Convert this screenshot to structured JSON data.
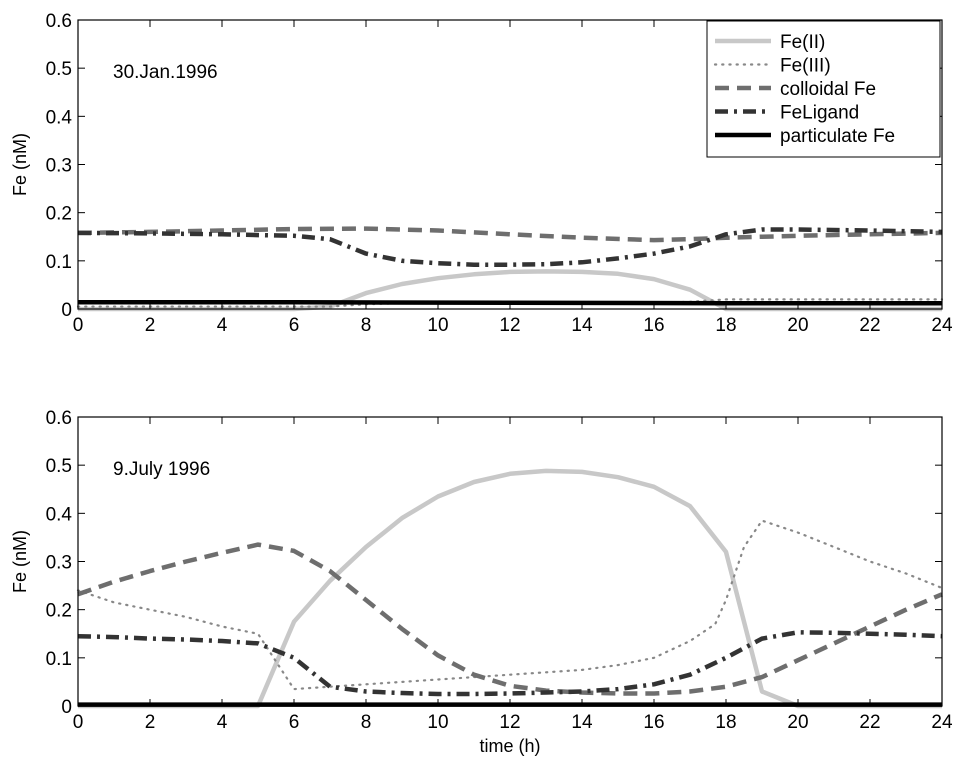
{
  "chart_data": [
    {
      "type": "line",
      "title": "",
      "xlabel": "",
      "ylabel": "Fe (nM)",
      "annotation": "30.Jan.1996",
      "xlim": [
        0,
        24
      ],
      "ylim": [
        0,
        0.6
      ],
      "xticks": [
        "0",
        "2",
        "4",
        "6",
        "8",
        "10",
        "12",
        "14",
        "16",
        "18",
        "20",
        "22",
        "24"
      ],
      "yticks": [
        "0",
        "0.1",
        "0.2",
        "0.3",
        "0.4",
        "0.5",
        "0.6"
      ],
      "grid": false,
      "legend": {
        "position": "top-right",
        "entries": [
          "Fe(II)",
          "Fe(III)",
          "colloidal Fe",
          "FeLigand",
          "particulate Fe"
        ]
      },
      "series": [
        {
          "name": "Fe(II)",
          "color": "#c8c8c8",
          "style": "solid",
          "x": [
            0,
            6,
            7,
            8,
            9,
            10,
            11,
            12,
            13,
            14,
            15,
            16,
            17,
            17.7,
            18,
            24
          ],
          "y": [
            0,
            0,
            0.005,
            0.033,
            0.052,
            0.064,
            0.072,
            0.077,
            0.078,
            0.077,
            0.073,
            0.062,
            0.04,
            0.012,
            0,
            0
          ]
        },
        {
          "name": "Fe(III)",
          "color": "#888888",
          "style": "dotted",
          "x": [
            0,
            5,
            6,
            7,
            8,
            9,
            12,
            15,
            17,
            18,
            24
          ],
          "y": [
            0.005,
            0.005,
            0.005,
            0.005,
            0.01,
            0.012,
            0.012,
            0.012,
            0.015,
            0.02,
            0.02
          ]
        },
        {
          "name": "colloidal Fe",
          "color": "#6e6e6e",
          "style": "dashed",
          "x": [
            0,
            2,
            4,
            6,
            8,
            10,
            12,
            14,
            16,
            17,
            18,
            20,
            22,
            24
          ],
          "y": [
            0.158,
            0.16,
            0.163,
            0.166,
            0.167,
            0.163,
            0.155,
            0.148,
            0.143,
            0.145,
            0.148,
            0.152,
            0.155,
            0.158
          ]
        },
        {
          "name": "FeLigand",
          "color": "#333333",
          "style": "dashdot",
          "x": [
            0,
            2,
            4,
            6,
            7,
            8,
            9,
            10,
            11,
            12,
            13,
            14,
            15,
            16,
            17,
            18,
            19,
            20,
            22,
            24
          ],
          "y": [
            0.158,
            0.157,
            0.155,
            0.152,
            0.145,
            0.115,
            0.1,
            0.095,
            0.092,
            0.092,
            0.093,
            0.097,
            0.105,
            0.115,
            0.13,
            0.155,
            0.165,
            0.165,
            0.163,
            0.16
          ]
        },
        {
          "name": "particulate Fe",
          "color": "#000000",
          "style": "solid",
          "x": [
            0,
            6,
            12,
            18,
            24
          ],
          "y": [
            0.014,
            0.014,
            0.013,
            0.012,
            0.012
          ]
        }
      ]
    },
    {
      "type": "line",
      "title": "",
      "xlabel": "time (h)",
      "ylabel": "Fe (nM)",
      "annotation": "9.July 1996",
      "xlim": [
        0,
        24
      ],
      "ylim": [
        0,
        0.6
      ],
      "xticks": [
        "0",
        "2",
        "4",
        "6",
        "8",
        "10",
        "12",
        "14",
        "16",
        "18",
        "20",
        "22",
        "24"
      ],
      "yticks": [
        "0",
        "0.1",
        "0.2",
        "0.3",
        "0.4",
        "0.5",
        "0.6"
      ],
      "grid": false,
      "series": [
        {
          "name": "Fe(II)",
          "color": "#c8c8c8",
          "style": "solid",
          "x": [
            0,
            5,
            6,
            7,
            8,
            9,
            10,
            11,
            12,
            13,
            14,
            15,
            16,
            17,
            18,
            19,
            20,
            24
          ],
          "y": [
            0,
            0,
            0.175,
            0.26,
            0.33,
            0.39,
            0.435,
            0.465,
            0.482,
            0.488,
            0.486,
            0.475,
            0.455,
            0.415,
            0.32,
            0.03,
            0,
            0
          ]
        },
        {
          "name": "Fe(III)",
          "color": "#888888",
          "style": "dotted",
          "x": [
            0,
            1,
            2,
            3,
            4,
            5,
            6,
            7,
            8,
            9,
            10,
            11,
            12,
            13,
            14,
            15,
            16,
            17,
            17.7,
            18,
            18.5,
            19,
            20,
            21,
            22,
            23,
            24
          ],
          "y": [
            0.24,
            0.215,
            0.2,
            0.185,
            0.165,
            0.15,
            0.035,
            0.04,
            0.045,
            0.05,
            0.055,
            0.06,
            0.065,
            0.07,
            0.075,
            0.085,
            0.1,
            0.135,
            0.17,
            0.22,
            0.33,
            0.385,
            0.36,
            0.33,
            0.3,
            0.275,
            0.245
          ]
        },
        {
          "name": "colloidal Fe",
          "color": "#6e6e6e",
          "style": "dashed",
          "x": [
            0,
            1,
            2,
            3,
            4,
            5,
            6,
            7,
            8,
            9,
            10,
            11,
            12,
            13,
            14,
            15,
            16,
            17,
            18,
            19,
            20,
            21,
            22,
            23,
            24
          ],
          "y": [
            0.232,
            0.258,
            0.28,
            0.3,
            0.318,
            0.335,
            0.322,
            0.28,
            0.22,
            0.16,
            0.105,
            0.065,
            0.042,
            0.032,
            0.028,
            0.026,
            0.026,
            0.03,
            0.04,
            0.06,
            0.095,
            0.13,
            0.165,
            0.2,
            0.232
          ]
        },
        {
          "name": "FeLigand",
          "color": "#333333",
          "style": "dashdot",
          "x": [
            0,
            1,
            2,
            3,
            4,
            5,
            6,
            7,
            8,
            9,
            10,
            11,
            12,
            13,
            14,
            15,
            16,
            17,
            18,
            19,
            20,
            21,
            22,
            23,
            24
          ],
          "y": [
            0.145,
            0.143,
            0.14,
            0.138,
            0.135,
            0.13,
            0.1,
            0.04,
            0.03,
            0.027,
            0.025,
            0.025,
            0.026,
            0.028,
            0.03,
            0.035,
            0.045,
            0.065,
            0.1,
            0.14,
            0.153,
            0.152,
            0.15,
            0.148,
            0.145
          ]
        },
        {
          "name": "particulate Fe",
          "color": "#000000",
          "style": "solid",
          "x": [
            0,
            6,
            12,
            18,
            24
          ],
          "y": [
            0.003,
            0.003,
            0.003,
            0.003,
            0.003
          ]
        }
      ]
    }
  ]
}
